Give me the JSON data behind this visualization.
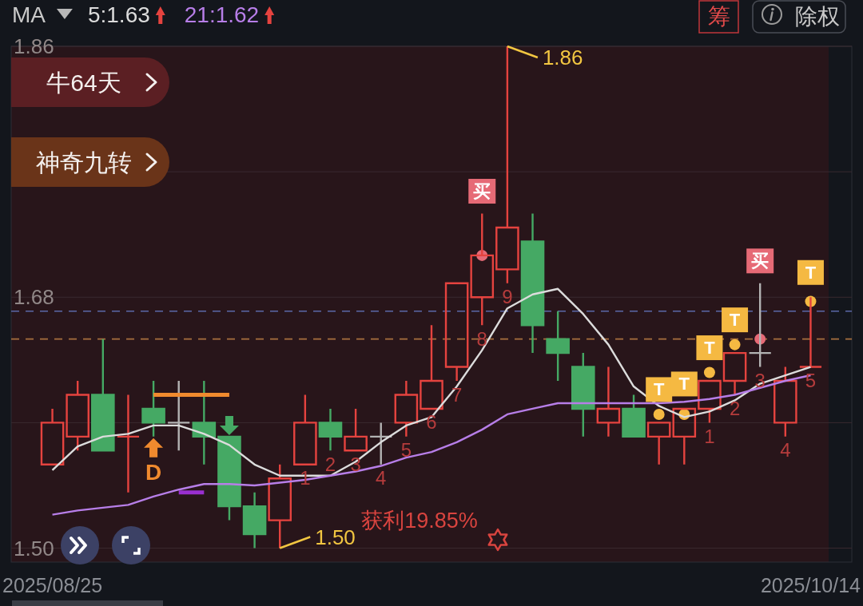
{
  "chart_data": {
    "type": "candlestick",
    "legend": "top left",
    "legend_title": "MA",
    "categories": [
      "2025/08/25",
      null,
      null,
      null,
      null,
      null,
      null,
      null,
      null,
      null,
      null,
      null,
      null,
      null,
      null,
      null,
      null,
      null,
      null,
      null,
      null,
      null,
      null,
      null,
      null,
      null,
      null,
      null,
      null,
      null,
      "2025/10/14"
    ],
    "ohlc": [
      [
        1.56,
        1.6,
        1.56,
        1.59
      ],
      [
        1.58,
        1.62,
        1.57,
        1.61
      ],
      [
        1.61,
        1.65,
        1.57,
        1.57
      ],
      [
        1.58,
        1.61,
        1.54,
        1.58
      ],
      [
        1.6,
        1.62,
        1.58,
        1.59
      ],
      [
        1.59,
        1.62,
        1.57,
        1.59
      ],
      [
        1.59,
        1.62,
        1.56,
        1.58
      ],
      [
        1.58,
        1.58,
        1.52,
        1.53
      ],
      [
        1.53,
        1.54,
        1.5,
        1.51
      ],
      [
        1.52,
        1.56,
        1.5,
        1.55
      ],
      [
        1.56,
        1.61,
        1.56,
        1.59
      ],
      [
        1.59,
        1.6,
        1.57,
        1.58
      ],
      [
        1.57,
        1.6,
        1.57,
        1.58
      ],
      [
        1.58,
        1.59,
        1.56,
        1.58
      ],
      [
        1.59,
        1.62,
        1.58,
        1.61
      ],
      [
        1.6,
        1.66,
        1.6,
        1.62
      ],
      [
        1.63,
        1.69,
        1.62,
        1.69
      ],
      [
        1.68,
        1.74,
        1.66,
        1.71
      ],
      [
        1.7,
        1.86,
        1.69,
        1.73
      ],
      [
        1.72,
        1.74,
        1.64,
        1.66
      ],
      [
        1.65,
        1.67,
        1.62,
        1.64
      ],
      [
        1.63,
        1.64,
        1.58,
        1.6
      ],
      [
        1.59,
        1.63,
        1.58,
        1.6
      ],
      [
        1.6,
        1.61,
        1.58,
        1.58
      ],
      [
        1.58,
        1.59,
        1.56,
        1.59
      ],
      [
        1.58,
        1.6,
        1.56,
        1.6
      ],
      [
        1.6,
        1.62,
        1.59,
        1.62
      ],
      [
        1.62,
        1.64,
        1.61,
        1.64
      ],
      [
        1.64,
        1.69,
        1.63,
        1.64
      ],
      [
        1.59,
        1.63,
        1.58,
        1.62
      ],
      [
        1.63,
        1.68,
        1.63,
        1.63
      ]
    ],
    "colors": [
      "#e5433f",
      "#e5433f",
      "#45a964",
      "#e5433f",
      "#45a964",
      "#b3b3b3",
      "#45a964",
      "#45a964",
      "#45a964",
      "#e5433f",
      "#e5433f",
      "#45a964",
      "#e5433f",
      "#b3b3b3",
      "#e5433f",
      "#e5433f",
      "#e5433f",
      "#e5433f",
      "#e5433f",
      "#45a964",
      "#45a964",
      "#45a964",
      "#e5433f",
      "#45a964",
      "#e5433f",
      "#e5433f",
      "#e5433f",
      "#e5433f",
      "#b3b3b3",
      "#e5433f",
      "#e5433f"
    ],
    "ylim": [
      1.49,
      1.86
    ],
    "yticks": [
      {
        "value": 1.5,
        "label": "1.50"
      },
      {
        "value": 1.59,
        "label": null
      },
      1.68,
      {
        "value": 1.77,
        "label": null
      },
      1.86
    ],
    "grid": "y",
    "ref_lines": [
      {
        "axis": "y",
        "value": 1.67,
        "color": "#5a68a8",
        "line_style": "dashed"
      },
      {
        "axis": "y",
        "value": 1.65,
        "color": "#a8703f",
        "line_style": "dashed"
      }
    ],
    "series": [
      {
        "type": "line",
        "name": "5:1.63",
        "color": "#dcdcdc",
        "values": [
          1.556,
          1.573,
          1.58,
          1.582,
          1.588,
          1.588,
          1.582,
          1.574,
          1.56,
          1.552,
          1.552,
          1.552,
          1.562,
          1.576,
          1.588,
          1.594,
          1.616,
          1.642,
          1.672,
          1.682,
          1.686,
          1.668,
          1.646,
          1.616,
          1.602,
          1.594,
          1.598,
          1.606,
          1.618,
          1.624,
          1.63
        ]
      },
      {
        "type": "line",
        "name": "21:1.62",
        "color": "#b77ee8",
        "values": [
          1.524,
          1.527,
          1.529,
          1.531,
          1.537,
          1.542,
          1.546,
          1.546,
          1.545,
          1.547,
          1.549,
          1.552,
          1.555,
          1.559,
          1.565,
          1.569,
          1.576,
          1.585,
          1.596,
          1.6,
          1.604,
          1.604,
          1.604,
          1.604,
          1.604,
          1.605,
          1.607,
          1.61,
          1.615,
          1.62,
          1.624
        ]
      },
      {
        "type": "line",
        "color": "#f08a2e",
        "values": [
          null,
          null,
          null,
          null,
          1.61,
          1.61,
          1.61,
          1.61,
          null,
          null,
          null,
          null,
          null,
          null,
          null,
          null,
          null,
          null,
          null,
          null,
          null,
          null,
          null,
          null,
          null,
          null,
          null,
          null,
          null,
          null,
          null
        ]
      },
      {
        "type": "line",
        "color": "#9a2fd0",
        "values": [
          null,
          null,
          null,
          null,
          null,
          1.54,
          1.54,
          null,
          null,
          null,
          null,
          null,
          null,
          null,
          null,
          null,
          null,
          null,
          null,
          null,
          null,
          null,
          null,
          null,
          null,
          null,
          null,
          null,
          null,
          null,
          null
        ]
      },
      {
        "type": "scatter",
        "marker": "triangle",
        "color": "#f08a2e",
        "values": [
          null,
          null,
          null,
          null,
          1.572,
          null,
          null,
          null,
          null,
          null,
          null,
          null,
          null,
          null,
          null,
          null,
          null,
          null,
          null,
          null,
          null,
          null,
          null,
          null,
          null,
          null,
          null,
          null,
          null,
          null,
          null
        ]
      },
      {
        "type": "scatter",
        "marker": "triangle",
        "color": "#45a964",
        "values": [
          null,
          null,
          null,
          null,
          null,
          null,
          null,
          1.588,
          null,
          null,
          null,
          null,
          null,
          null,
          null,
          null,
          null,
          null,
          null,
          null,
          null,
          null,
          null,
          null,
          null,
          null,
          null,
          null,
          null,
          null,
          null
        ]
      },
      {
        "type": "scatter",
        "marker": "circle",
        "color": "#f5b942",
        "values": [
          null,
          null,
          null,
          null,
          null,
          null,
          null,
          null,
          null,
          null,
          null,
          null,
          null,
          null,
          null,
          null,
          null,
          null,
          null,
          null,
          null,
          null,
          null,
          null,
          1.596,
          1.596,
          1.626,
          1.646,
          null,
          null,
          1.677
        ]
      },
      {
        "type": "scatter",
        "marker": "circle",
        "color": "#e66a76",
        "values": [
          null,
          null,
          null,
          null,
          null,
          null,
          null,
          null,
          null,
          null,
          null,
          null,
          null,
          null,
          null,
          null,
          null,
          1.71,
          null,
          null,
          null,
          null,
          null,
          null,
          null,
          null,
          null,
          null,
          1.65,
          null,
          null
        ]
      }
    ],
    "annotations": [
      "牛64天",
      "神奇九转",
      "获利19.85%",
      "筹",
      "除权",
      "1.86",
      "1.50",
      {
        "text": "D",
        "y": 1.572
      },
      {
        "text": "T",
        "y": 1.596
      },
      {
        "text": "T",
        "y": 1.596
      },
      {
        "text": "T",
        "y": 1.626
      },
      {
        "text": "T",
        "y": 1.646
      },
      {
        "text": "T",
        "y": 1.677
      },
      {
        "text": "买",
        "y": 1.74
      },
      {
        "text": "买",
        "y": 1.69
      },
      {
        "text": "1",
        "y": 1.56
      },
      {
        "text": "2",
        "y": 1.57
      },
      {
        "text": "3",
        "y": 1.57
      },
      {
        "text": "4",
        "y": 1.56
      },
      {
        "text": "5",
        "y": 1.58
      },
      {
        "text": "6",
        "y": 1.6
      },
      {
        "text": "7",
        "y": 1.62
      },
      {
        "text": "8",
        "y": 1.66
      },
      {
        "text": "9",
        "y": 1.69
      },
      {
        "text": "1",
        "y": 1.59
      },
      {
        "text": "2",
        "y": 1.61
      },
      {
        "text": "3",
        "y": 1.63
      },
      {
        "text": "4",
        "y": 1.58
      },
      {
        "text": "5",
        "y": 1.63
      }
    ]
  }
}
